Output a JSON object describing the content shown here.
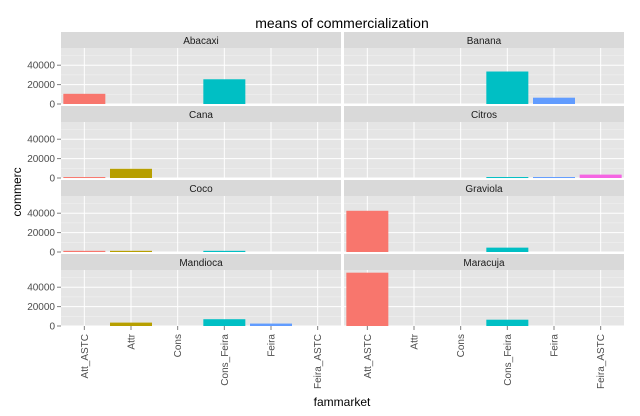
{
  "chart_data": {
    "type": "bar",
    "title": "means of commercialization",
    "xlabel": "fammarket",
    "ylabel": "commerc",
    "categories": [
      "Att_ASTC",
      "Attr",
      "Cons",
      "Cons_Feira",
      "Feira",
      "Feira_ASTC"
    ],
    "category_colors": [
      "#F8766D",
      "#B79F00",
      "#00BA38",
      "#00BFC4",
      "#619CFF",
      "#F564E3"
    ],
    "ylim": [
      0,
      55000
    ],
    "yticks": [
      0,
      20000,
      40000
    ],
    "ytick_labels": [
      "0",
      "20000",
      "40000"
    ],
    "facet_layout": "2 columns x 4 rows, free x per row",
    "grid": true,
    "legend": "none",
    "panels": [
      {
        "label": "Abacaxi",
        "values": [
          10500,
          0,
          0,
          25500,
          0,
          0
        ]
      },
      {
        "label": "Banana",
        "values": [
          0,
          0,
          0,
          33500,
          6500,
          0
        ]
      },
      {
        "label": "Cana",
        "values": [
          1000,
          9500,
          0,
          0,
          0,
          0
        ]
      },
      {
        "label": "Citros",
        "values": [
          0,
          0,
          0,
          1000,
          1000,
          3500
        ]
      },
      {
        "label": "Coco",
        "values": [
          1200,
          1200,
          0,
          1200,
          0,
          0
        ]
      },
      {
        "label": "Graviola",
        "values": [
          42500,
          0,
          0,
          4500,
          0,
          0
        ]
      },
      {
        "label": "Mandioca",
        "values": [
          0,
          3500,
          0,
          7000,
          2500,
          0
        ]
      },
      {
        "label": "Maracuja",
        "values": [
          55000,
          0,
          0,
          6500,
          0,
          0
        ]
      }
    ]
  }
}
